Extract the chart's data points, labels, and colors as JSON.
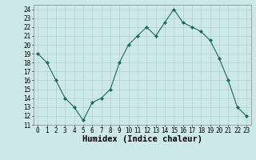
{
  "x": [
    0,
    1,
    2,
    3,
    4,
    5,
    6,
    7,
    8,
    9,
    10,
    11,
    12,
    13,
    14,
    15,
    16,
    17,
    18,
    19,
    20,
    21,
    22,
    23
  ],
  "y": [
    19,
    18,
    16,
    14,
    13,
    11.5,
    13.5,
    14,
    15,
    18,
    20,
    21,
    22,
    21,
    22.5,
    24,
    22.5,
    22,
    21.5,
    20.5,
    18.5,
    16,
    13,
    12
  ],
  "line_color": "#1a6b5a",
  "marker": "D",
  "marker_size": 2,
  "bg_color": "#cde8e8",
  "grid_color": "#b0d0d0",
  "xlabel": "Humidex (Indice chaleur)",
  "ylim": [
    11,
    24.5
  ],
  "yticks": [
    11,
    12,
    13,
    14,
    15,
    16,
    17,
    18,
    19,
    20,
    21,
    22,
    23,
    24
  ],
  "xticks": [
    0,
    1,
    2,
    3,
    4,
    5,
    6,
    7,
    8,
    9,
    10,
    11,
    12,
    13,
    14,
    15,
    16,
    17,
    18,
    19,
    20,
    21,
    22,
    23
  ],
  "xlim": [
    -0.5,
    23.5
  ],
  "tick_label_fontsize": 5.5,
  "xlabel_fontsize": 7.5,
  "xlabel_fontweight": "bold"
}
